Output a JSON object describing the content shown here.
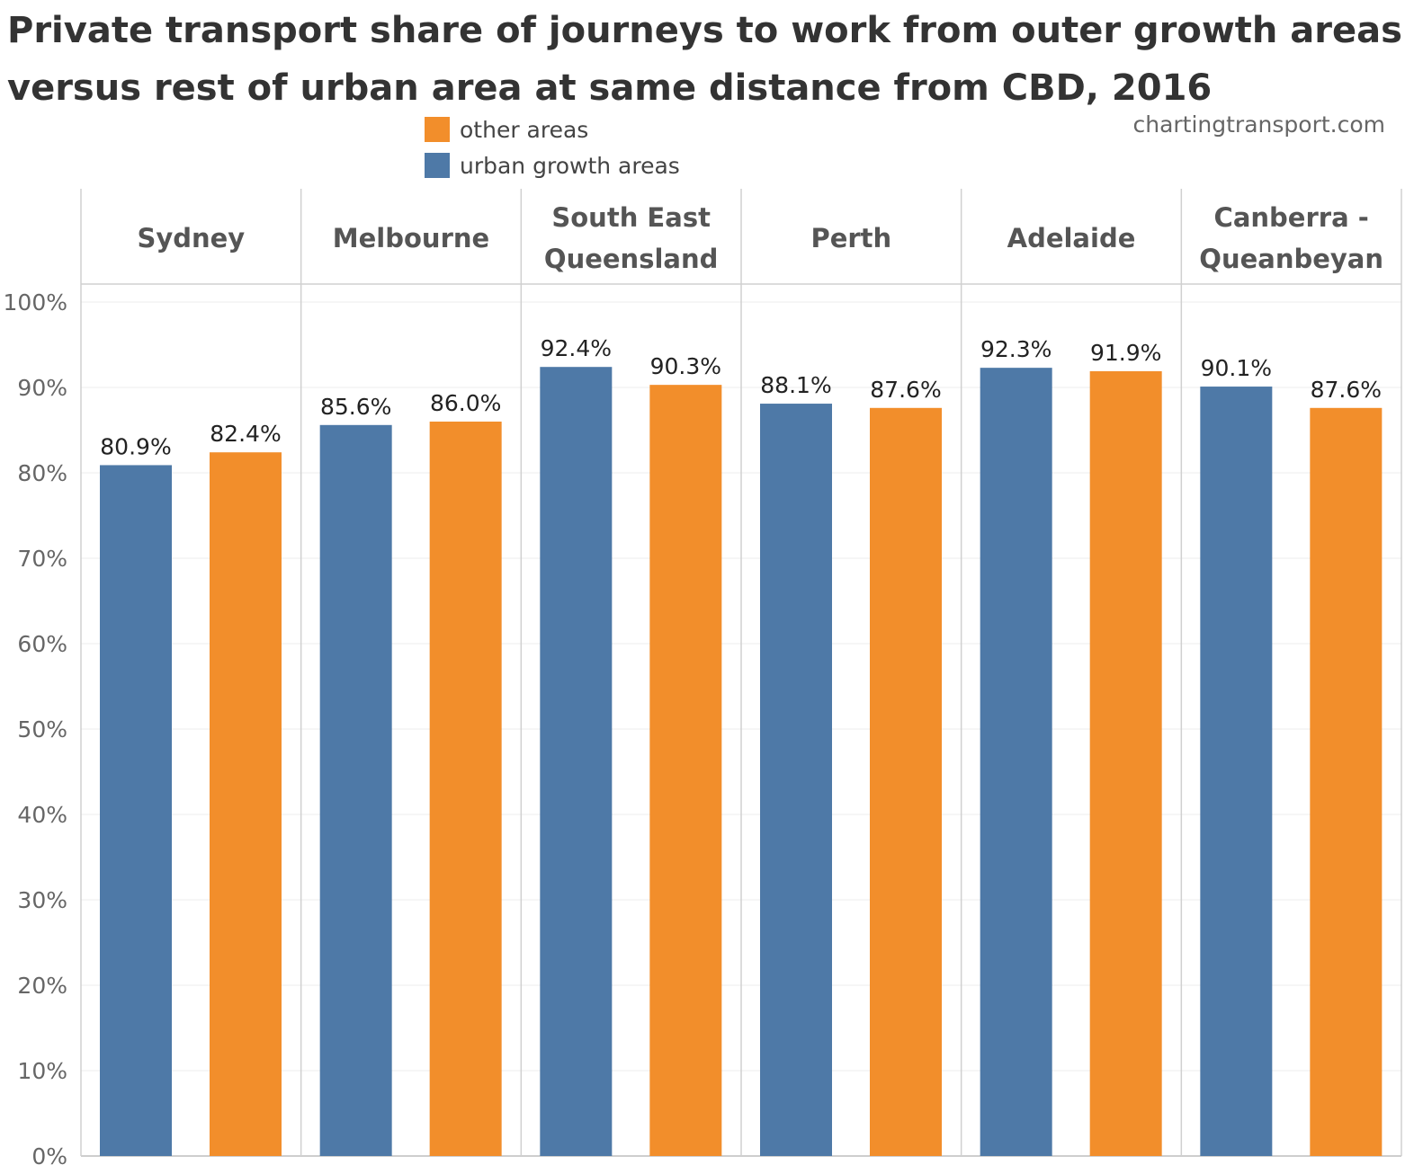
{
  "chart_data": {
    "type": "bar",
    "title_lines": [
      "Private transport share of journeys to work from outer growth areas",
      "versus rest of urban area at same distance from CBD, 2016"
    ],
    "source": "chartingtransport.com",
    "categories": [
      [
        "Sydney"
      ],
      [
        "Melbourne"
      ],
      [
        "South East",
        "Queensland"
      ],
      [
        "Perth"
      ],
      [
        "Adelaide"
      ],
      [
        "Canberra -",
        "Queanbeyan"
      ]
    ],
    "legend": [
      {
        "name": "other areas",
        "color": "#f28e2b"
      },
      {
        "name": "urban growth areas",
        "color": "#4e79a7"
      }
    ],
    "series": [
      {
        "name": "urban growth areas",
        "color": "#4e79a7",
        "values": [
          80.9,
          85.6,
          92.4,
          88.1,
          92.3,
          90.1
        ],
        "labels": [
          "80.9%",
          "85.6%",
          "92.4%",
          "88.1%",
          "92.3%",
          "90.1%"
        ]
      },
      {
        "name": "other areas",
        "color": "#f28e2b",
        "values": [
          82.4,
          86.0,
          90.3,
          87.6,
          91.9,
          87.6
        ],
        "labels": [
          "82.4%",
          "86.0%",
          "90.3%",
          "87.6%",
          "91.9%",
          "87.6%"
        ]
      }
    ],
    "yticks": [
      "0%",
      "10%",
      "20%",
      "30%",
      "40%",
      "50%",
      "60%",
      "70%",
      "80%",
      "90%",
      "100%"
    ],
    "ylim": [
      0,
      100
    ],
    "ylabel": "",
    "xlabel": "",
    "grid": true
  }
}
